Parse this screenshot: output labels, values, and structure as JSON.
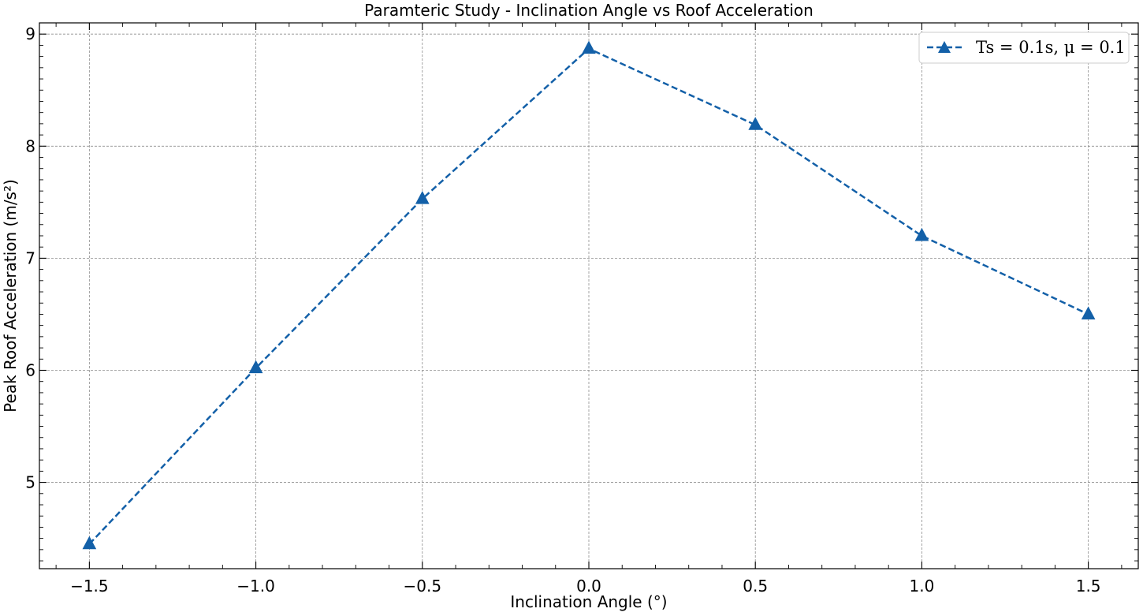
{
  "chart_data": {
    "type": "line",
    "title": "Paramteric Study - Inclination Angle vs Roof Acceleration",
    "xlabel": "Inclination Angle (°)",
    "ylabel": "Peak Roof Acceleration (m/s²)",
    "xlim": [
      -1.65,
      1.65
    ],
    "ylim": [
      4.23,
      9.1
    ],
    "x_ticks": [
      -1.5,
      -1.0,
      -0.5,
      0.0,
      0.5,
      1.0,
      1.5
    ],
    "x_tick_labels": [
      "−1.5",
      "−1.0",
      "−0.5",
      "0.0",
      "0.5",
      "1.0",
      "1.5"
    ],
    "y_ticks": [
      5,
      6,
      7,
      8,
      9
    ],
    "y_tick_labels": [
      "5",
      "6",
      "7",
      "8",
      "9"
    ],
    "grid": true,
    "legend_position": "top-right",
    "series": [
      {
        "name": "Ts = 0.1s, μ = 0.1",
        "color": "#1360a8",
        "line_style": "dashed",
        "marker": "triangle-up",
        "x": [
          -1.5,
          -1.0,
          -0.5,
          0.0,
          0.5,
          1.0,
          1.5
        ],
        "y": [
          4.45,
          6.02,
          7.53,
          8.87,
          8.19,
          7.2,
          6.5
        ]
      }
    ]
  }
}
